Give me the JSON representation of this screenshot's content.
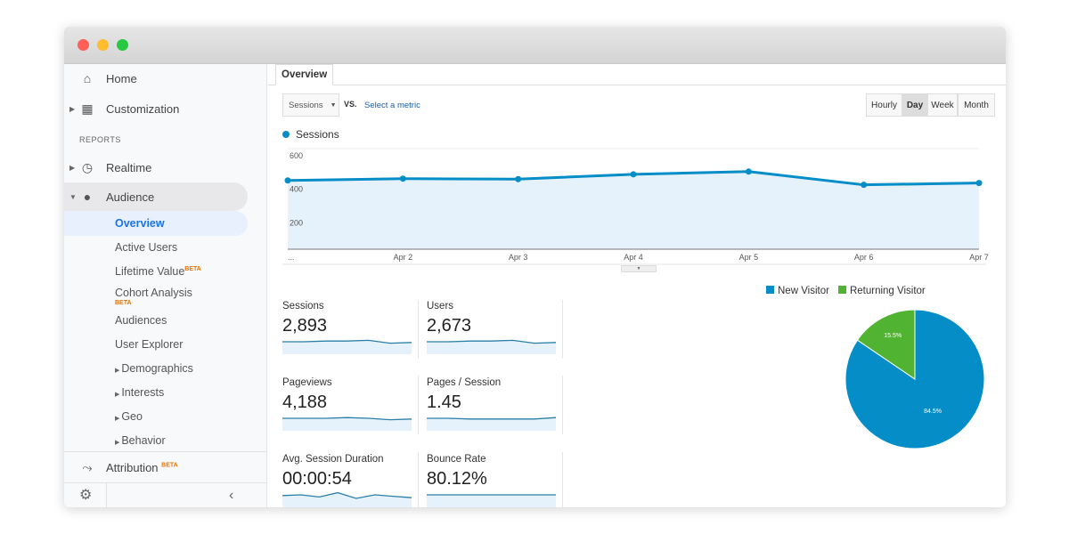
{
  "window": {
    "controls": [
      "close",
      "minimize",
      "maximize"
    ]
  },
  "sidebar": {
    "items": [
      {
        "label": "Home",
        "icon": "home-icon"
      },
      {
        "label": "Customization",
        "icon": "dashboard-icon"
      }
    ],
    "section": "REPORTS",
    "reports": [
      {
        "label": "Realtime",
        "icon": "clock-icon"
      },
      {
        "label": "Audience",
        "icon": "person-icon"
      }
    ],
    "audience_sub": [
      "Overview",
      "Active Users",
      "Lifetime Value",
      "Cohort Analysis",
      "Audiences",
      "User Explorer",
      "Demographics",
      "Interests",
      "Geo",
      "Behavior"
    ],
    "beta": "BETA",
    "attribution": "Attribution",
    "collapse": "‹"
  },
  "tab": "Overview",
  "controls": {
    "metric": "Sessions",
    "vs": "VS.",
    "select_metric": "Select a metric",
    "granularity": [
      "Hourly",
      "Day",
      "Week",
      "Month"
    ],
    "selected": "Day"
  },
  "chart_data": [
    {
      "type": "area",
      "legend": "Sessions",
      "color": "#058dc7",
      "categories": [
        "...",
        "Apr 2",
        "Apr 3",
        "Apr 4",
        "Apr 5",
        "Apr 6",
        "Apr 7"
      ],
      "values": [
        410,
        421,
        418,
        447,
        463,
        384,
        395
      ],
      "yticks": [
        "600",
        "400",
        "200"
      ],
      "ylim": [
        0,
        600
      ],
      "grid": true
    },
    {
      "type": "pie",
      "legend": [
        "New Visitor",
        "Returning Visitor"
      ],
      "values": [
        84.5,
        15.5
      ],
      "labels": [
        "84.5%",
        "15.5%"
      ],
      "colors": [
        "#058dc7",
        "#50b432"
      ],
      "legend_position": "top"
    }
  ],
  "metrics": [
    {
      "label": "Sessions",
      "value": "2,893",
      "spark": [
        5,
        5,
        4,
        4,
        3,
        7,
        6
      ]
    },
    {
      "label": "Users",
      "value": "2,673",
      "spark": [
        5,
        5,
        4,
        4,
        3,
        7,
        6
      ]
    },
    {
      "label": "Pageviews",
      "value": "4,188",
      "spark": [
        5,
        5,
        5,
        4,
        5,
        7,
        6
      ]
    },
    {
      "label": "Pages / Session",
      "value": "1.45",
      "spark": [
        5,
        5,
        6,
        6,
        6,
        6,
        4
      ]
    },
    {
      "label": "Avg. Session Duration",
      "value": "00:00:54",
      "spark": [
        6,
        5,
        8,
        2,
        10,
        5,
        7,
        9
      ]
    },
    {
      "label": "Bounce Rate",
      "value": "80.12%",
      "spark": [
        5,
        5,
        5,
        5,
        5,
        5,
        5
      ]
    }
  ]
}
